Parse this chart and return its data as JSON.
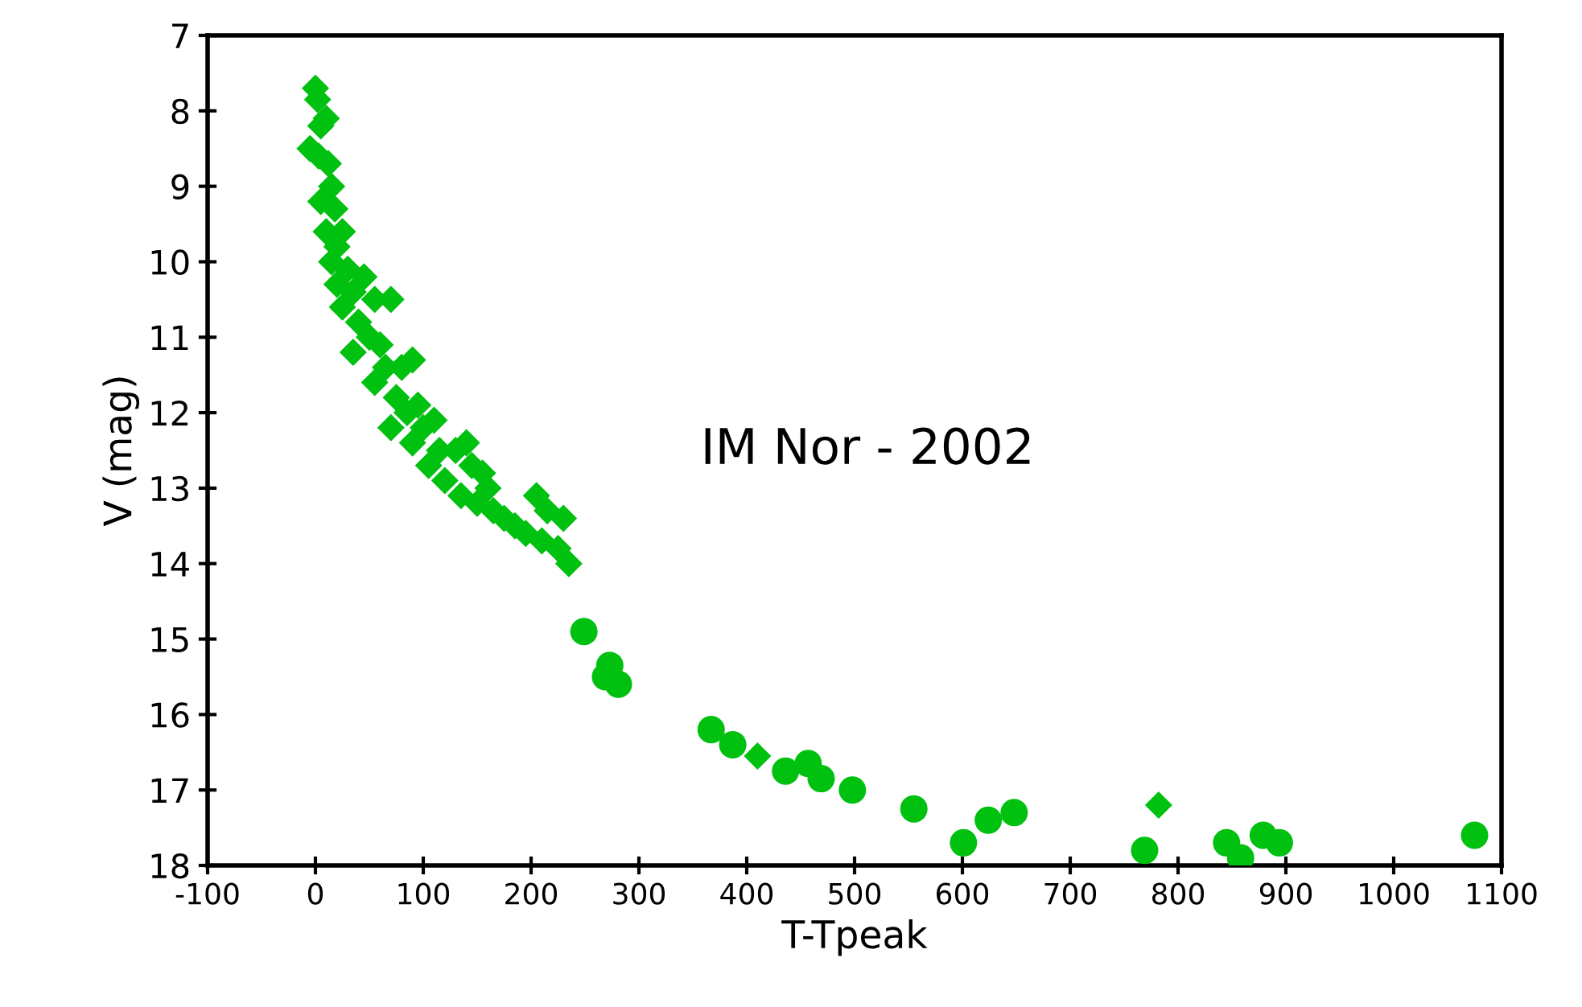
{
  "chart_data": {
    "type": "scatter",
    "xlabel": "T-Tpeak",
    "ylabel": "V (mag)",
    "annotations": [
      "IM Nor - 2002"
    ],
    "xlim": [
      -100,
      1100
    ],
    "xticks": [
      -100,
      0,
      100,
      200,
      300,
      400,
      500,
      600,
      700,
      800,
      900,
      1000,
      1100
    ],
    "ylim": [
      18,
      7
    ],
    "yticks": [
      7,
      8,
      9,
      10,
      11,
      12,
      13,
      14,
      15,
      16,
      17,
      18
    ],
    "grid": false,
    "legend": false,
    "series": [
      {
        "color": "#00c010",
        "marker": "diamond",
        "x": [
          -5,
          0,
          2,
          5,
          10,
          3,
          12,
          15,
          5,
          18,
          10,
          20,
          25,
          15,
          30,
          20,
          35,
          45,
          25,
          40,
          55,
          70,
          50,
          60,
          35,
          65,
          55,
          80,
          90,
          75,
          95,
          85,
          70,
          100,
          110,
          90,
          115,
          105,
          130,
          140,
          120,
          145,
          155,
          135,
          160,
          150,
          165,
          175,
          185,
          195,
          205,
          215,
          230,
          210,
          225,
          235,
          410,
          782
        ],
        "values": [
          8.5,
          7.7,
          7.85,
          8.2,
          8.1,
          8.6,
          8.7,
          9.0,
          9.2,
          9.3,
          9.6,
          9.8,
          9.6,
          10.0,
          10.1,
          10.3,
          10.4,
          10.2,
          10.6,
          10.8,
          10.5,
          10.5,
          11.0,
          11.1,
          11.2,
          11.4,
          11.6,
          11.4,
          11.3,
          11.8,
          11.9,
          12.0,
          12.2,
          12.2,
          12.1,
          12.4,
          12.5,
          12.7,
          12.5,
          12.4,
          12.9,
          12.7,
          12.8,
          13.1,
          13.0,
          13.2,
          13.3,
          13.4,
          13.5,
          13.6,
          13.1,
          13.3,
          13.4,
          13.7,
          13.8,
          14.0,
          16.55,
          17.2
        ]
      },
      {
        "color": "#00c010",
        "marker": "circle",
        "x": [
          249,
          273,
          269,
          281,
          367,
          387,
          436,
          457,
          469,
          498,
          555,
          601,
          624,
          648,
          769,
          845,
          858,
          879,
          894,
          1075
        ],
        "values": [
          14.9,
          15.35,
          15.5,
          15.6,
          16.2,
          16.4,
          16.75,
          16.65,
          16.85,
          17.0,
          17.25,
          17.7,
          17.4,
          17.3,
          17.8,
          17.7,
          17.9,
          17.6,
          17.7,
          17.6
        ]
      }
    ]
  }
}
